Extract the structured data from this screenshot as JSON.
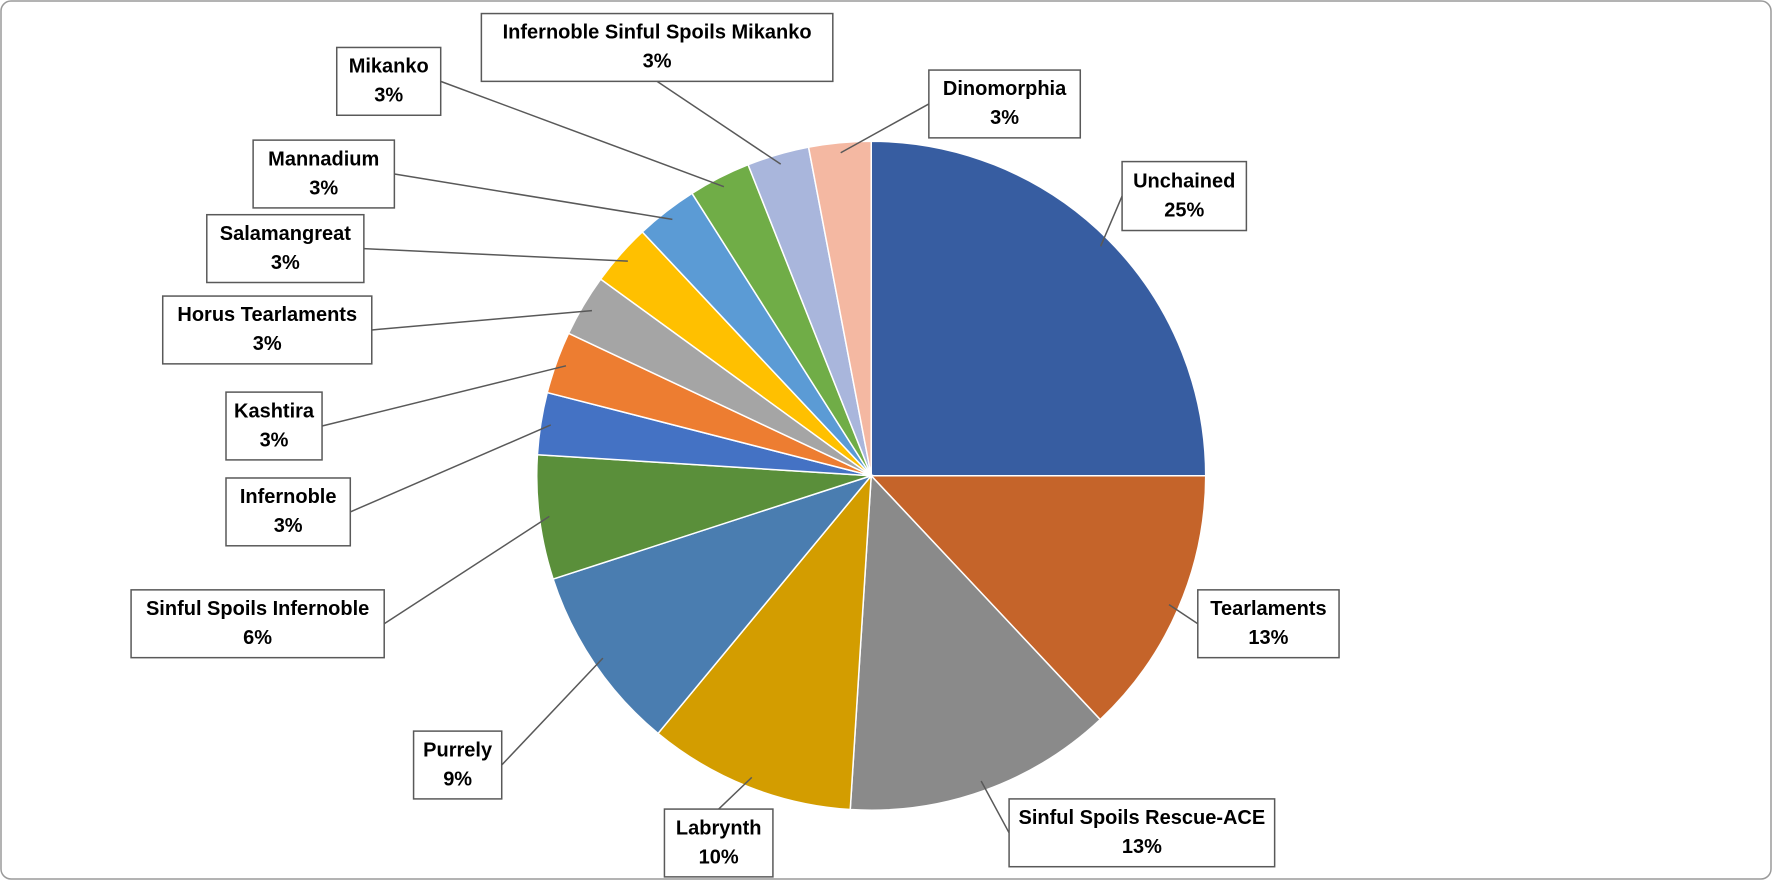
{
  "chart_data": {
    "type": "pie",
    "categories": [
      "Unchained",
      "Tearlaments",
      "Sinful Spoils Rescue-ACE",
      "Labrynth",
      "Purrely",
      "Sinful Spoils Infernoble",
      "Infernoble",
      "Kashtira",
      "Horus Tearlaments",
      "Salamangreat",
      "Mannadium",
      "Mikanko",
      "Infernoble Sinful Spoils Mikanko",
      "Dinomorphia"
    ],
    "values": [
      25,
      13,
      13,
      10,
      9,
      6,
      3,
      3,
      3,
      3,
      3,
      3,
      3,
      3
    ],
    "value_labels": [
      "25%",
      "13%",
      "13%",
      "10%",
      "9%",
      "6%",
      "3%",
      "3%",
      "3%",
      "3%",
      "3%",
      "3%",
      "3%",
      "3%"
    ],
    "colors": [
      "#375da1",
      "#c5642a",
      "#8a8a8a",
      "#d39d00",
      "#4a7db0",
      "#5a8f3a",
      "#4472c4",
      "#ed7d31",
      "#a5a5a5",
      "#ffc000",
      "#5b9bd5",
      "#70ad47",
      "#a9b6dc",
      "#f4b8a2"
    ]
  }
}
